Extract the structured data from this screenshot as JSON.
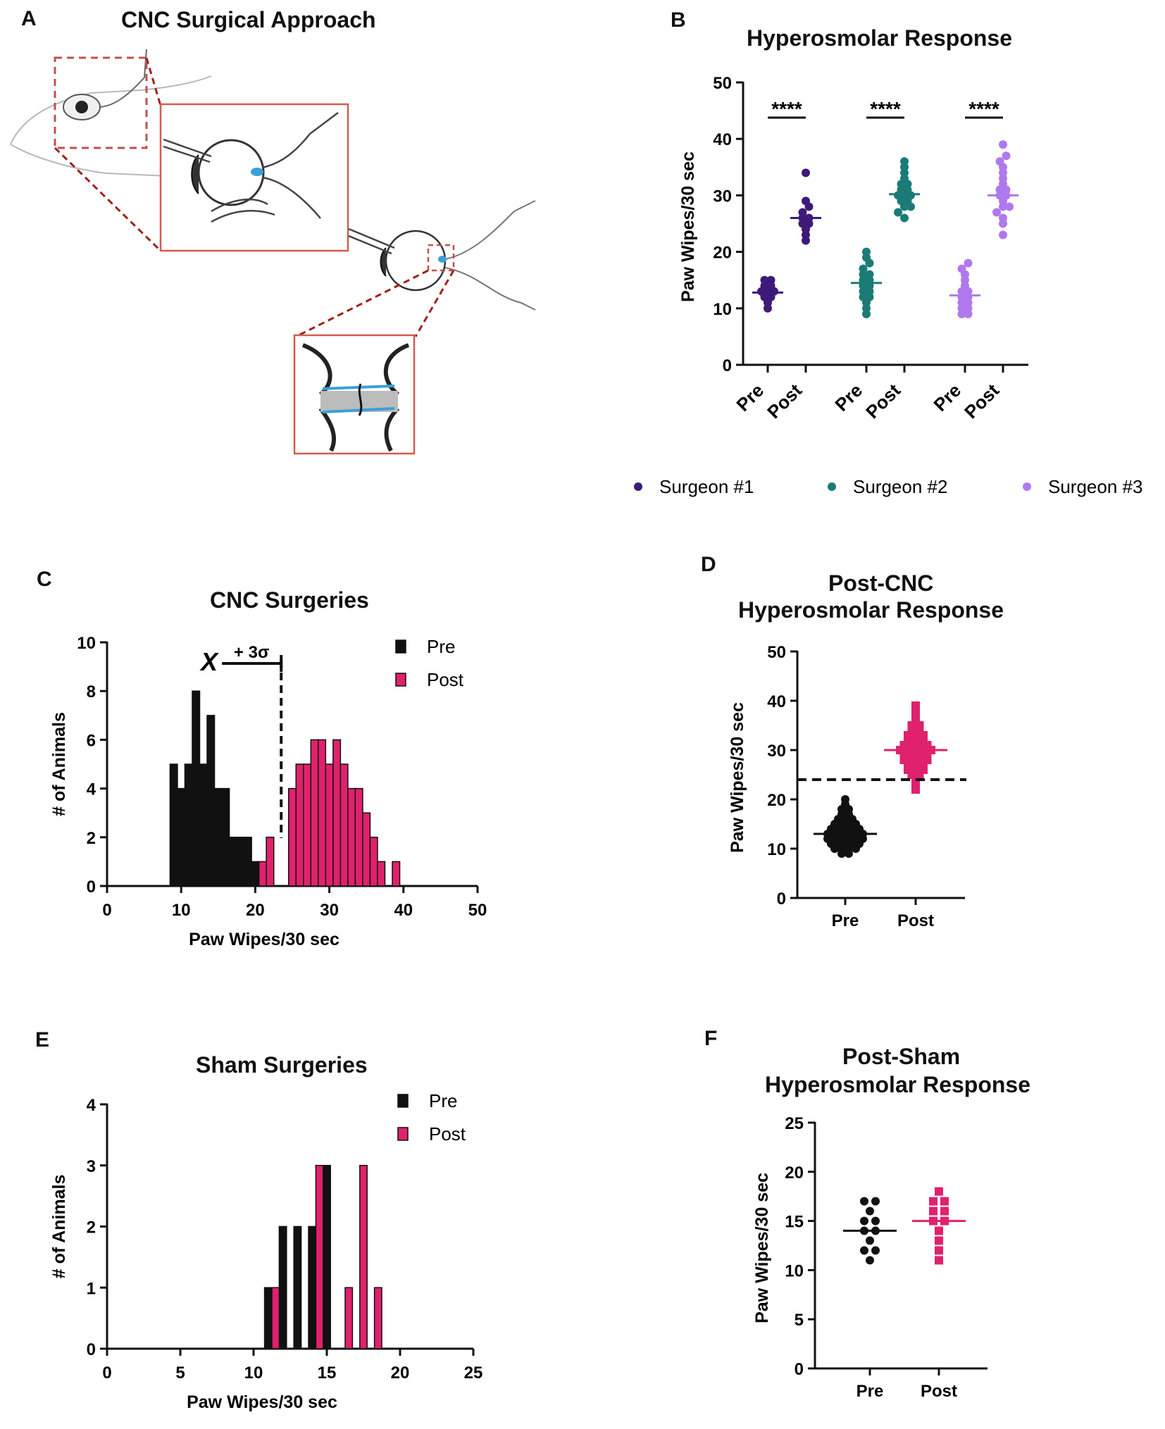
{
  "figure": {
    "panels": {
      "a": {
        "letter": "A",
        "title": "CNC Surgical Approach"
      },
      "b": {
        "letter": "B",
        "title": "Hyperosmolar Response"
      },
      "c": {
        "letter": "C",
        "title": "CNC Surgeries"
      },
      "d": {
        "letter": "D",
        "title_line1": "Post-CNC",
        "title_line2": "Hyperosmolar  Response"
      },
      "e": {
        "letter": "E",
        "title": "Sham  Surgeries"
      },
      "f": {
        "letter": "F",
        "title_line1": "Post-Sham",
        "title_line2": "Hyperosmolar Response"
      }
    }
  },
  "colors": {
    "surgeon1": "#3d1a78",
    "surgeon2": "#1c7b76",
    "surgeon3": "#b078ee",
    "pre": "#111111",
    "post": "#e0216d",
    "frame": "#d45a50",
    "dash": "#a3201a",
    "blue": "#3aa0d8"
  },
  "chart_data": [
    {
      "panel": "B",
      "type": "scatter",
      "title": "Hyperosmolar Response",
      "ylabel": "Paw Wipes/30 sec",
      "ylim": [
        0,
        50
      ],
      "yticks": [
        "0",
        "10",
        "20",
        "30",
        "40",
        "50"
      ],
      "categories": [
        "Pre",
        "Post",
        "Pre",
        "Post",
        "Pre",
        "Post"
      ],
      "significance": [
        "****",
        "****",
        "****"
      ],
      "legend": [
        "Surgeon #1",
        "Surgeon #2",
        "Surgeon #3"
      ],
      "series": [
        {
          "name": "Surgeon #1",
          "pre": [
            10,
            11,
            12,
            12,
            13,
            13,
            13,
            14,
            14,
            15,
            15
          ],
          "post": [
            22,
            23,
            24,
            25,
            25,
            26,
            26,
            27,
            28,
            29,
            34
          ],
          "pre_mean": 12.8,
          "post_mean": 26
        },
        {
          "name": "Surgeon #2",
          "pre": [
            9,
            10,
            11,
            12,
            12,
            13,
            13,
            14,
            14,
            15,
            15,
            16,
            16,
            17,
            18,
            19,
            20
          ],
          "post": [
            26,
            27,
            28,
            28,
            29,
            29,
            30,
            30,
            30,
            31,
            31,
            32,
            32,
            33,
            34,
            35,
            36
          ],
          "pre_mean": 14.5,
          "post_mean": 30.2
        },
        {
          "name": "Surgeon #3",
          "pre": [
            9,
            9,
            10,
            10,
            11,
            11,
            12,
            12,
            13,
            13,
            14,
            15,
            16,
            17,
            18
          ],
          "post": [
            23,
            25,
            26,
            27,
            28,
            28,
            29,
            30,
            30,
            31,
            31,
            32,
            33,
            34,
            35,
            36,
            37,
            39
          ],
          "pre_mean": 12.3,
          "post_mean": 30
        }
      ]
    },
    {
      "panel": "C",
      "type": "bar",
      "title": "CNC Surgeries",
      "xlabel": "Paw Wipes/30 sec",
      "ylabel": "# of Animals",
      "xlim": [
        0,
        50
      ],
      "ylim": [
        0,
        10
      ],
      "xticks": [
        "0",
        "10",
        "20",
        "30",
        "40",
        "50"
      ],
      "yticks": [
        "0",
        "2",
        "4",
        "6",
        "8",
        "10"
      ],
      "threshold": 23.5,
      "mean_marker": "X",
      "sigma_label": "+ 3σ",
      "legend": [
        "Pre",
        "Post"
      ],
      "series": [
        {
          "name": "Pre",
          "bins": [
            9,
            10,
            11,
            12,
            13,
            14,
            15,
            16,
            17,
            18,
            19,
            20,
            22
          ],
          "values": [
            5,
            4,
            5,
            8,
            5,
            7,
            4,
            4,
            2,
            2,
            2,
            1,
            2
          ]
        },
        {
          "name": "Post",
          "bins": [
            21,
            22,
            25,
            26,
            27,
            28,
            29,
            30,
            31,
            32,
            33,
            34,
            35,
            36,
            37,
            39
          ],
          "values": [
            1,
            2,
            4,
            5,
            5,
            6,
            6,
            5,
            6,
            5,
            4,
            4,
            3,
            2,
            1,
            1
          ]
        }
      ]
    },
    {
      "panel": "D",
      "type": "scatter",
      "title": "Post-CNC Hyperosmolar Response",
      "ylabel": "Paw Wipes/30 sec",
      "ylim": [
        0,
        50
      ],
      "yticks": [
        "0",
        "10",
        "20",
        "30",
        "40",
        "50"
      ],
      "categories": [
        "Pre",
        "Post"
      ],
      "threshold": 24,
      "series": [
        {
          "name": "Pre",
          "values": [
            9,
            9,
            10,
            10,
            10,
            10,
            11,
            11,
            11,
            11,
            11,
            12,
            12,
            12,
            12,
            12,
            12,
            13,
            13,
            13,
            13,
            13,
            13,
            14,
            14,
            14,
            14,
            14,
            15,
            15,
            15,
            15,
            16,
            16,
            16,
            17,
            17,
            18,
            18,
            19,
            20
          ],
          "mean": 13
        },
        {
          "name": "Post",
          "values": [
            22,
            23,
            24,
            25,
            25,
            26,
            26,
            26,
            27,
            27,
            27,
            28,
            28,
            28,
            28,
            29,
            29,
            29,
            29,
            30,
            30,
            30,
            30,
            30,
            31,
            31,
            31,
            31,
            32,
            32,
            32,
            33,
            33,
            33,
            34,
            34,
            35,
            35,
            36,
            37,
            38,
            39
          ],
          "mean": 30
        }
      ]
    },
    {
      "panel": "E",
      "type": "bar",
      "title": "Sham  Surgeries",
      "xlabel": "Paw Wipes/30 sec",
      "ylabel": "# of Animals",
      "xlim": [
        0,
        25
      ],
      "ylim": [
        0,
        4
      ],
      "xticks": [
        "0",
        "5",
        "10",
        "15",
        "20",
        "25"
      ],
      "yticks": [
        "0",
        "1",
        "2",
        "3",
        "4"
      ],
      "legend": [
        "Pre",
        "Post"
      ],
      "series": [
        {
          "name": "Pre",
          "bins": [
            11,
            12,
            13,
            14,
            15
          ],
          "values": [
            1,
            2,
            2,
            2,
            3
          ]
        },
        {
          "name": "Post",
          "bins": [
            11.5,
            14.5,
            16.5,
            17.5,
            18.5
          ],
          "values": [
            1,
            3,
            1,
            3,
            1
          ]
        }
      ]
    },
    {
      "panel": "F",
      "type": "scatter",
      "title": "Post-Sham Hyperosmolar Response",
      "ylabel": "Paw Wipes/30 sec",
      "ylim": [
        0,
        25
      ],
      "yticks": [
        "0",
        "5",
        "10",
        "15",
        "20",
        "25"
      ],
      "categories": [
        "Pre",
        "Post"
      ],
      "series": [
        {
          "name": "Pre",
          "values": [
            11,
            12,
            12,
            13,
            14,
            14,
            15,
            15,
            16,
            17,
            17
          ],
          "mean": 14
        },
        {
          "name": "Post",
          "values": [
            11,
            12,
            13,
            14,
            15,
            15,
            16,
            16,
            17,
            17,
            18
          ],
          "mean": 15
        }
      ]
    }
  ]
}
